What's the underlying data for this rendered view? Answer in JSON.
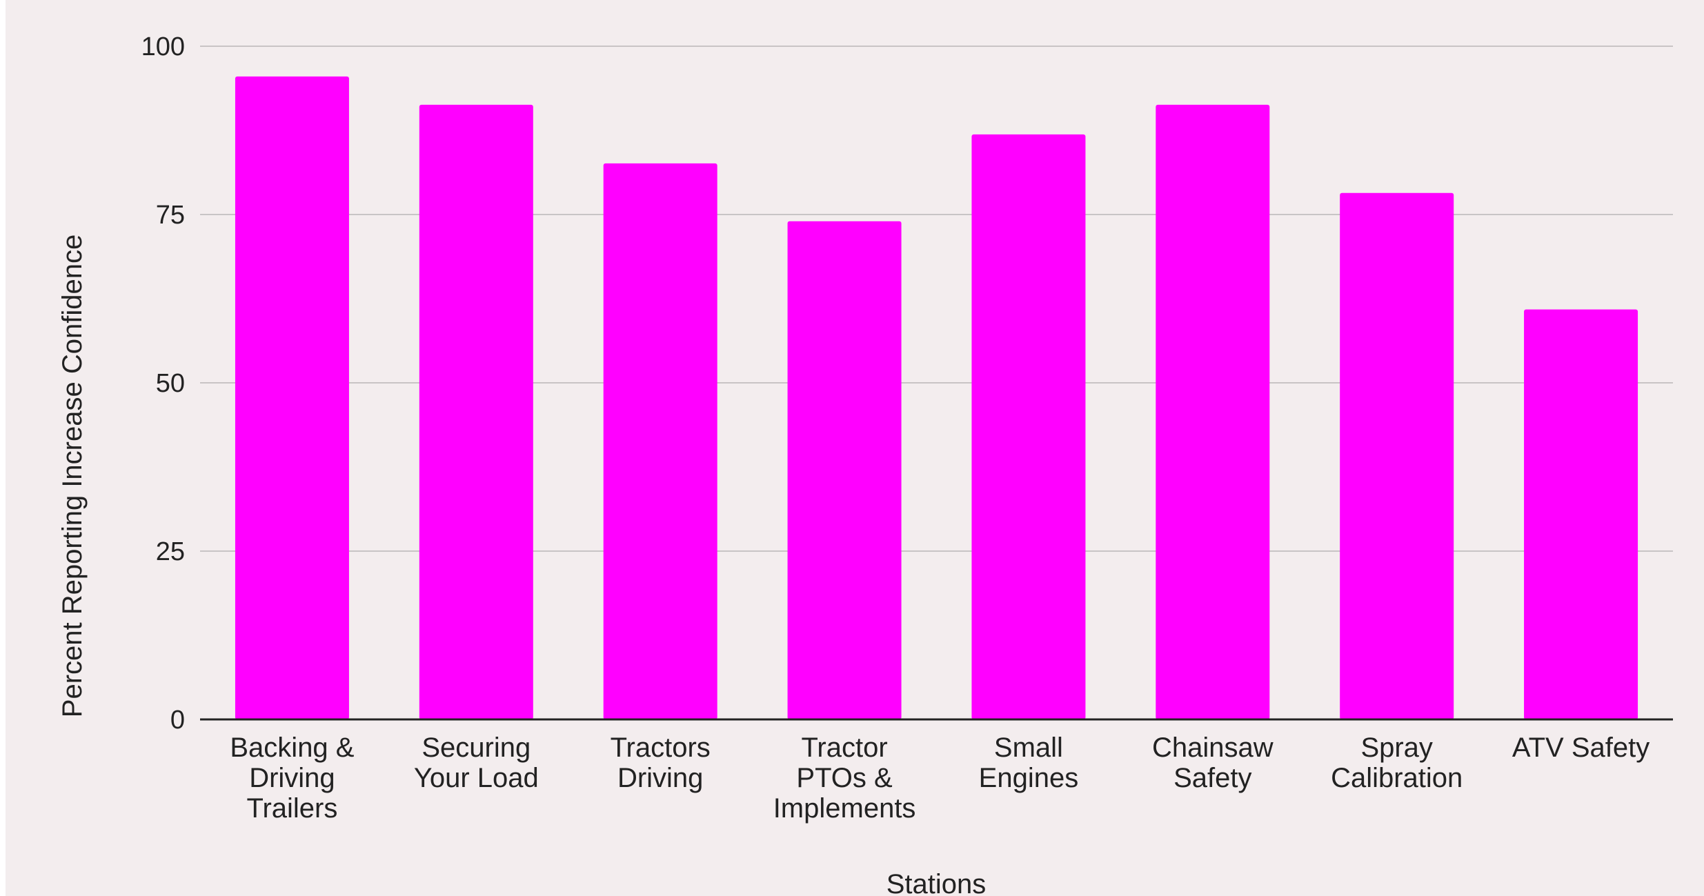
{
  "chart_data": {
    "type": "bar",
    "categories": [
      [
        "Backing &",
        "Driving",
        "Trailers"
      ],
      [
        "Securing",
        "Your Load"
      ],
      [
        "Tractors",
        "Driving"
      ],
      [
        "Tractor",
        "PTOs &",
        "Implements"
      ],
      [
        "Small",
        "Engines"
      ],
      [
        "Chainsaw",
        "Safety"
      ],
      [
        "Spray",
        "Calibration"
      ],
      [
        "ATV Safety"
      ]
    ],
    "values": [
      95.5,
      91.3,
      82.6,
      74.0,
      86.9,
      91.3,
      78.2,
      60.9
    ],
    "title": "",
    "xlabel": "Stations",
    "ylabel": "Percent Reporting Increase Confidence",
    "ylim": [
      0,
      100
    ],
    "yticks": [
      "0",
      "25",
      "50",
      "75",
      "100"
    ],
    "grid": true,
    "legend": "none",
    "colors": {
      "bar": "#ff00ff",
      "background": "#f3edee",
      "gridline": "#c8c4c5",
      "axis": "#222222"
    }
  }
}
